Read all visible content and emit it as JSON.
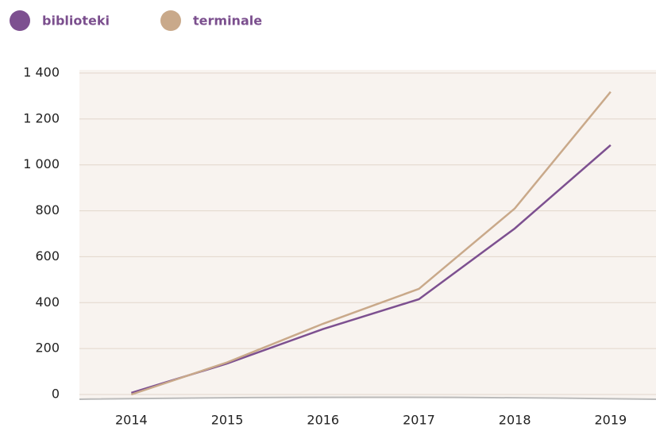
{
  "chart_data": {
    "type": "line",
    "categories": [
      "2014",
      "2015",
      "2016",
      "2017",
      "2018",
      "2019"
    ],
    "series": [
      {
        "name": "biblioteki",
        "color": "#7d5090",
        "values": [
          7,
          135,
          285,
          415,
          723,
          1086
        ]
      },
      {
        "name": "terminale",
        "color": "#c9a98a",
        "values": [
          0,
          140,
          308,
          460,
          810,
          1318
        ]
      }
    ],
    "ylim": [
      0,
      1400
    ],
    "yticks": [
      0,
      200,
      400,
      600,
      800,
      {
        "value": 1000,
        "label": "1 000"
      },
      {
        "value": 1200,
        "label": "1 200"
      },
      {
        "value": 1400,
        "label": "1 400"
      }
    ],
    "grid": true,
    "legend": "top-left"
  }
}
